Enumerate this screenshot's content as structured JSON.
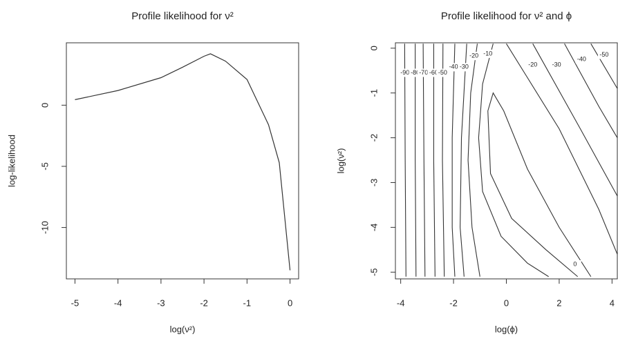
{
  "chart_data": [
    {
      "type": "line",
      "title": "Profile likelihood for ν²",
      "x_label": "log(ν²)",
      "y_label": "log-likelihood",
      "x": [
        -5,
        -4,
        -3,
        -2.5,
        -2,
        -1.85,
        -1.5,
        -1,
        -0.5,
        -0.25,
        0
      ],
      "series": [
        {
          "color": "#333333",
          "values": [
            0.45,
            1.2,
            2.25,
            3.1,
            4.0,
            4.2,
            3.6,
            2.1,
            -1.6,
            -4.7,
            -13.5
          ]
        }
      ],
      "xlim": [
        -5.2,
        0.2
      ],
      "ylim": [
        -14.2,
        5.1
      ],
      "xticks": [
        -5,
        -4,
        -3,
        -2,
        -1,
        0
      ],
      "yticks": [
        0,
        -5,
        -10
      ]
    },
    {
      "type": "contour",
      "title": "Profile likelihood for ν² and ϕ",
      "x_label": "log(ϕ)",
      "y_label": "log(ν²)",
      "xlim": [
        -4.2,
        4.2
      ],
      "ylim": [
        -5.15,
        0.12
      ],
      "xticks": [
        -4,
        -2,
        0,
        2,
        4
      ],
      "yticks": [
        0,
        -1,
        -2,
        -3,
        -4,
        -5
      ],
      "color": "#333333",
      "contours": [
        {
          "level": -90,
          "x": [
            -3.85,
            -3.83,
            -3.8
          ],
          "y": [
            0.1,
            -2.5,
            -5.1
          ]
        },
        {
          "level": -80,
          "x": [
            -3.45,
            -3.45,
            -3.42
          ],
          "y": [
            0.1,
            -2.5,
            -5.1
          ]
        },
        {
          "level": -70,
          "x": [
            -3.15,
            -3.12,
            -3.08
          ],
          "y": [
            0.1,
            -2.5,
            -5.1
          ]
        },
        {
          "level": -60,
          "x": [
            -2.75,
            -2.75,
            -2.7
          ],
          "y": [
            0.1,
            -2.5,
            -5.1
          ]
        },
        {
          "level": -50,
          "x": [
            -2.4,
            -2.42,
            -2.35
          ],
          "y": [
            0.1,
            -2.5,
            -5.1
          ]
        },
        {
          "level": -40,
          "x": [
            -1.95,
            -2.05,
            -2.05,
            -1.95
          ],
          "y": [
            0.1,
            -2,
            -4,
            -5.1
          ]
        },
        {
          "level": -30,
          "x": [
            -1.5,
            -1.7,
            -1.75,
            -1.6
          ],
          "y": [
            0.1,
            -2,
            -4,
            -5.1
          ]
        },
        {
          "level": -20,
          "x": [
            -1.1,
            -1.35,
            -1.45,
            -1.3,
            -1.0
          ],
          "y": [
            0.1,
            -1,
            -2.5,
            -4,
            -5.1
          ]
        },
        {
          "level": -10,
          "x": [
            -0.5,
            -0.9,
            -1.05,
            -0.9,
            -0.2,
            0.8,
            1.6
          ],
          "y": [
            0.1,
            -0.8,
            -2,
            -3.2,
            -4.2,
            -4.8,
            -5.1
          ]
        },
        {
          "level": 0,
          "x": [
            3.2,
            2.0,
            0.8,
            -0.1,
            -0.5,
            -0.7,
            -0.6,
            0.2,
            1.5,
            2.7
          ],
          "y": [
            -5.1,
            -4.0,
            -2.7,
            -1.4,
            -1.0,
            -1.4,
            -2.8,
            -3.8,
            -4.5,
            -5.1
          ]
        },
        {
          "level": -20,
          "x": [
            0.0,
            2.0,
            3.5,
            4.2
          ],
          "y": [
            0.1,
            -1.8,
            -3.6,
            -4.6
          ]
        },
        {
          "level": -30,
          "x": [
            1.0,
            2.8,
            4.2
          ],
          "y": [
            0.1,
            -1.8,
            -3.3
          ]
        },
        {
          "level": -40,
          "x": [
            2.2,
            3.5,
            4.2
          ],
          "y": [
            0.1,
            -1.3,
            -2.0
          ]
        },
        {
          "level": -50,
          "x": [
            3.2,
            4.2
          ],
          "y": [
            0.1,
            -0.9
          ]
        }
      ]
    }
  ]
}
